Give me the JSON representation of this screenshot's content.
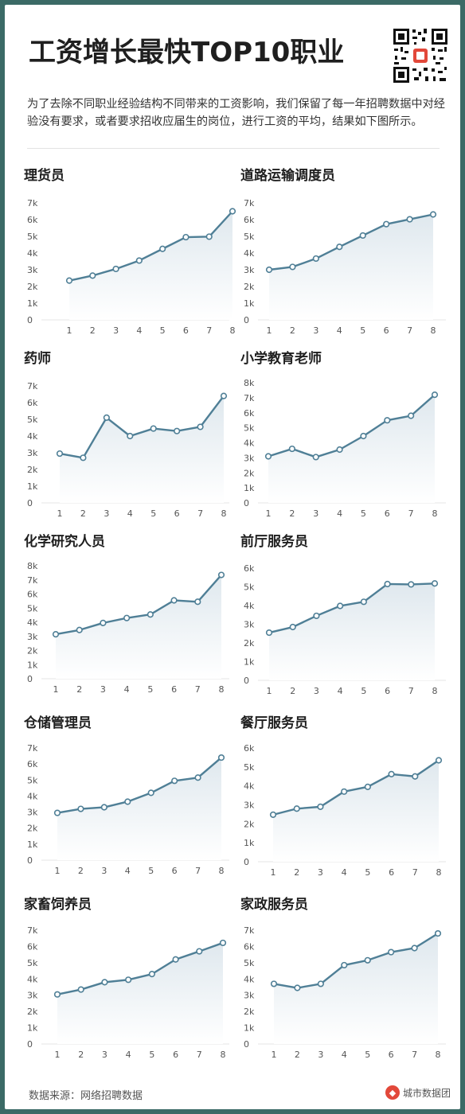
{
  "title": "工资增长最快TOP10职业",
  "intro": "为了去除不同职业经验结构不同带来的工资影响，我们保留了每一年招聘数据中对经验没有要求，或者要求招收应届生的岗位，进行工资的平均，结果如下图所示。",
  "footer": {
    "source": "数据来源：网络招聘数据",
    "brand": "城市数据团"
  },
  "colors": {
    "line": "#4f7f96",
    "fill": "#dfe8ee",
    "marker_fill": "#ffffff"
  },
  "chart_data": [
    {
      "type": "area",
      "title": "理货员",
      "x": [
        1,
        2,
        3,
        4,
        5,
        6,
        7,
        8
      ],
      "values": [
        2350,
        2650,
        3050,
        3550,
        4250,
        4950,
        4980,
        6500
      ],
      "ylim": [
        0,
        7000
      ],
      "yticks": [
        "0",
        "1k",
        "2k",
        "3k",
        "4k",
        "5k",
        "6k",
        "7k"
      ]
    },
    {
      "type": "area",
      "title": "道路运输调度员",
      "x": [
        1,
        2,
        3,
        4,
        5,
        6,
        7,
        8
      ],
      "values": [
        3000,
        3170,
        3670,
        4370,
        5050,
        5730,
        6020,
        6310
      ],
      "ylim": [
        0,
        7000
      ],
      "yticks": [
        "0",
        "1k",
        "2k",
        "3k",
        "4k",
        "5k",
        "6k",
        "7k"
      ]
    },
    {
      "type": "area",
      "title": "药师",
      "x": [
        1,
        2,
        3,
        4,
        5,
        6,
        7,
        8
      ],
      "values": [
        2950,
        2700,
        5100,
        4000,
        4450,
        4300,
        4550,
        6400
      ],
      "ylim": [
        0,
        7000
      ],
      "yticks": [
        "0",
        "1k",
        "2k",
        "3k",
        "4k",
        "5k",
        "6k",
        "7k"
      ]
    },
    {
      "type": "area",
      "title": "小学教育老师",
      "x": [
        1,
        2,
        3,
        4,
        5,
        6,
        7,
        8
      ],
      "values": [
        3100,
        3600,
        3050,
        3550,
        4450,
        5500,
        5800,
        7200
      ],
      "ylim": [
        0,
        8000
      ],
      "yticks": [
        "0",
        "1k",
        "2k",
        "3k",
        "4k",
        "5k",
        "6k",
        "7k",
        "8k"
      ]
    },
    {
      "type": "area",
      "title": "化学研究人员",
      "x": [
        1,
        2,
        3,
        4,
        5,
        6,
        7,
        8
      ],
      "values": [
        3150,
        3450,
        3950,
        4300,
        4550,
        5550,
        5450,
        7350
      ],
      "ylim": [
        0,
        8000
      ],
      "yticks": [
        "0",
        "1k",
        "2k",
        "3k",
        "4k",
        "5k",
        "6k",
        "7k",
        "8k"
      ]
    },
    {
      "type": "area",
      "title": "前厅服务员",
      "x": [
        1,
        2,
        3,
        4,
        5,
        6,
        7,
        8
      ],
      "values": [
        2550,
        2850,
        3450,
        3980,
        4200,
        5150,
        5130,
        5180
      ],
      "ylim": [
        0,
        6000
      ],
      "yticks": [
        "0",
        "1k",
        "2k",
        "3k",
        "4k",
        "5k",
        "6k"
      ]
    },
    {
      "type": "area",
      "title": "仓储管理员",
      "x": [
        1,
        2,
        3,
        4,
        5,
        6,
        7,
        8
      ],
      "values": [
        2950,
        3200,
        3300,
        3650,
        4200,
        4950,
        5150,
        6400
      ],
      "ylim": [
        0,
        7000
      ],
      "yticks": [
        "0",
        "1k",
        "2k",
        "3k",
        "4k",
        "5k",
        "6k",
        "7k"
      ]
    },
    {
      "type": "area",
      "title": "餐厅服务员",
      "x": [
        1,
        2,
        3,
        4,
        5,
        6,
        7,
        8
      ],
      "values": [
        2480,
        2800,
        2900,
        3700,
        3950,
        4620,
        4500,
        5350
      ],
      "ylim": [
        0,
        6000
      ],
      "yticks": [
        "0",
        "1k",
        "2k",
        "3k",
        "4k",
        "5k",
        "6k"
      ]
    },
    {
      "type": "area",
      "title": "家畜饲养员",
      "x": [
        1,
        2,
        3,
        4,
        5,
        6,
        7,
        8
      ],
      "values": [
        3050,
        3350,
        3800,
        3950,
        4300,
        5200,
        5700,
        6220
      ],
      "ylim": [
        0,
        7000
      ],
      "yticks": [
        "0",
        "1k",
        "2k",
        "3k",
        "4k",
        "5k",
        "6k",
        "7k"
      ]
    },
    {
      "type": "area",
      "title": "家政服务员",
      "x": [
        1,
        2,
        3,
        4,
        5,
        6,
        7,
        8
      ],
      "values": [
        3700,
        3450,
        3700,
        4850,
        5150,
        5650,
        5900,
        6800
      ],
      "ylim": [
        0,
        7000
      ],
      "yticks": [
        "0",
        "1k",
        "2k",
        "3k",
        "4k",
        "5k",
        "6k",
        "7k"
      ]
    }
  ]
}
